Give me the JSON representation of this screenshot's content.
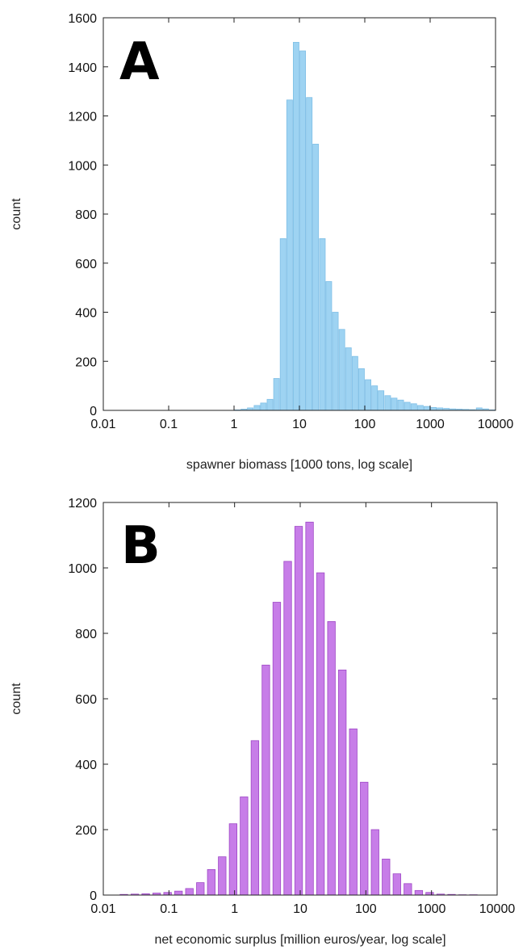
{
  "chart_data": [
    {
      "type": "bar",
      "panel_label": "A",
      "xlabel": "spawner biomass [1000 tons, log scale]",
      "ylabel": "count",
      "x_scale": "log",
      "xlim": [
        0.01,
        10000
      ],
      "ylim": [
        0,
        1600
      ],
      "xticks": [
        "0.01",
        "0.1",
        "1",
        "10",
        "100",
        "1000",
        "10000"
      ],
      "yticks": [
        "0",
        "200",
        "400",
        "600",
        "800",
        "1000",
        "1200",
        "1400",
        "1600"
      ],
      "bar_color": "#9ed3f2",
      "bar_edge_color": "#7fbfe6",
      "bin_width_log10": 0.1,
      "x_bin_start": [
        1.0,
        1.26,
        1.58,
        2.0,
        2.51,
        3.16,
        3.98,
        5.01,
        6.31,
        7.94,
        10.0,
        12.6,
        15.8,
        20.0,
        25.1,
        31.6,
        39.8,
        50.1,
        63.1,
        79.4,
        100,
        126,
        158,
        200,
        251,
        316,
        398,
        501,
        631,
        794,
        1000,
        1259,
        1585,
        1995,
        2512,
        3162,
        3981,
        5012,
        6310,
        7943
      ],
      "values": [
        2,
        5,
        10,
        20,
        30,
        45,
        130,
        700,
        1265,
        1500,
        1465,
        1275,
        1085,
        700,
        525,
        400,
        330,
        255,
        220,
        170,
        125,
        100,
        80,
        60,
        50,
        42,
        33,
        27,
        20,
        16,
        12,
        10,
        8,
        6,
        5,
        4,
        3,
        10,
        6,
        2
      ]
    },
    {
      "type": "bar",
      "panel_label": "B",
      "xlabel": "net economic surplus [million euros/year, log scale]",
      "ylabel": "count",
      "x_scale": "log",
      "xlim": [
        0.01,
        10000
      ],
      "ylim": [
        0,
        1200
      ],
      "xticks": [
        "0.01",
        "0.1",
        "1",
        "10",
        "100",
        "1000",
        "10000"
      ],
      "yticks": [
        "0",
        "200",
        "400",
        "600",
        "800",
        "1000",
        "1200"
      ],
      "bar_color": "#c77de8",
      "bar_edge_color": "#9e48c6",
      "bin_width_log10": 0.1657,
      "x_bin_start": [
        0.017,
        0.025,
        0.0366,
        0.0537,
        0.0788,
        0.1156,
        0.1695,
        0.2487,
        0.365,
        0.535,
        0.785,
        1.151,
        1.688,
        2.476,
        3.63,
        5.33,
        7.82,
        11.47,
        16.82,
        24.7,
        36.2,
        53.1,
        77.9,
        114.2,
        167.5,
        245.7,
        360,
        529,
        775,
        1138,
        1669,
        2448,
        3591
      ],
      "values": [
        2,
        3,
        4,
        6,
        8,
        12,
        20,
        38,
        78,
        117,
        218,
        300,
        472,
        703,
        895,
        1020,
        1127,
        1140,
        985,
        836,
        688,
        508,
        345,
        200,
        110,
        65,
        35,
        14,
        8,
        3,
        2,
        1,
        1
      ]
    }
  ]
}
